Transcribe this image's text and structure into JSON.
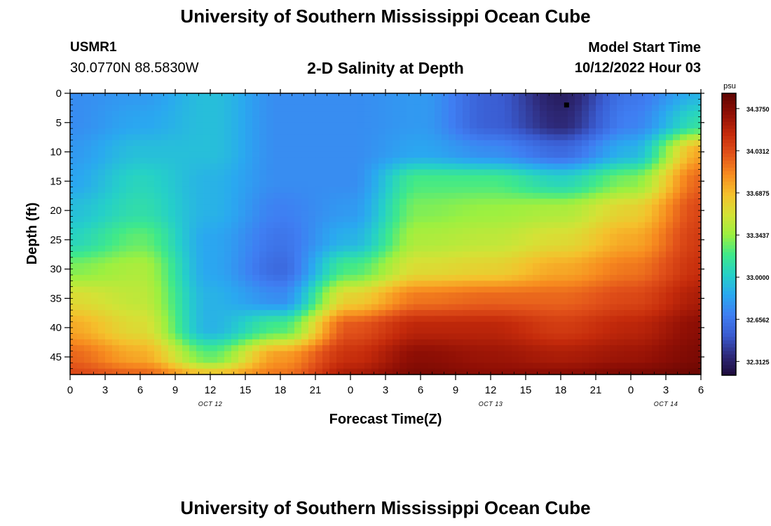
{
  "header": {
    "title": "University of Southern Mississippi Ocean Cube",
    "station_id": "USMR1",
    "coordinates": "30.0770N  88.5830W",
    "subtitle": "2-D Salinity at Depth",
    "start_label": "Model Start Time",
    "start_value": "10/12/2022 Hour 03"
  },
  "footer": {
    "title": "University of Southern Mississippi Ocean Cube"
  },
  "chart_data": {
    "type": "heatmap",
    "title": "2-D Salinity at Depth",
    "xlabel": "Forecast Time(Z)",
    "ylabel": "Depth (ft)",
    "x_ticks": [
      "0",
      "3",
      "6",
      "9",
      "12",
      "15",
      "18",
      "21",
      "0",
      "3",
      "6",
      "9",
      "12",
      "15",
      "18",
      "21",
      "0",
      "3",
      "6"
    ],
    "x_hours": [
      0,
      3,
      6,
      9,
      12,
      15,
      18,
      21,
      24,
      27,
      30,
      33,
      36,
      39,
      42,
      45,
      48,
      51,
      54
    ],
    "xlim": [
      0,
      54
    ],
    "day_labels": [
      {
        "text": "OCT 12",
        "hour": 12
      },
      {
        "text": "OCT 13",
        "hour": 36
      },
      {
        "text": "OCT 14",
        "hour": 51
      }
    ],
    "y_ticks": [
      0,
      5,
      10,
      15,
      20,
      25,
      30,
      35,
      40,
      45
    ],
    "ylim": [
      0,
      48
    ],
    "colorbar": {
      "unit": "psu",
      "min": 32.2,
      "max": 34.5,
      "labels": [
        "34.3750",
        "34.0312",
        "33.6875",
        "33.3437",
        "33.0000",
        "32.6562",
        "32.3125"
      ],
      "label_values": [
        34.375,
        34.0312,
        33.6875,
        33.3437,
        33.0,
        32.6562,
        32.3125
      ],
      "palette": [
        "#1e0b3a",
        "#2e2a7a",
        "#3a5bd0",
        "#3f7ef2",
        "#2aa8f0",
        "#25d0c8",
        "#3fe98a",
        "#9cf040",
        "#d4e236",
        "#f5c02c",
        "#f78b1f",
        "#e2521a",
        "#c42a0b",
        "#900f05",
        "#5e0402"
      ]
    },
    "grid": {
      "hours": [
        0,
        6,
        12,
        18,
        24,
        30,
        36,
        42,
        48,
        54
      ],
      "depths": [
        0,
        5,
        10,
        15,
        20,
        25,
        30,
        35,
        40,
        45,
        48
      ],
      "salinity": [
        [
          32.75,
          32.8,
          32.95,
          32.75,
          32.75,
          32.8,
          32.55,
          32.3,
          32.65,
          32.9
        ],
        [
          32.75,
          32.85,
          32.95,
          32.75,
          32.75,
          32.8,
          32.55,
          32.35,
          32.7,
          33.1
        ],
        [
          32.8,
          32.95,
          32.95,
          32.75,
          32.75,
          32.85,
          32.75,
          32.6,
          32.9,
          33.75
        ],
        [
          32.85,
          33.05,
          32.9,
          32.75,
          32.75,
          33.2,
          33.2,
          33.05,
          33.3,
          33.95
        ],
        [
          32.95,
          33.1,
          32.9,
          32.7,
          32.8,
          33.3,
          33.35,
          33.4,
          33.6,
          34.05
        ],
        [
          33.05,
          33.25,
          32.85,
          32.65,
          32.9,
          33.4,
          33.45,
          33.55,
          33.75,
          34.1
        ],
        [
          33.3,
          33.4,
          32.85,
          32.6,
          33.2,
          33.55,
          33.6,
          33.75,
          33.9,
          34.15
        ],
        [
          33.55,
          33.45,
          32.9,
          32.75,
          33.6,
          33.9,
          33.95,
          33.95,
          34.05,
          34.25
        ],
        [
          33.75,
          33.55,
          32.9,
          33.2,
          34.0,
          34.2,
          34.2,
          34.1,
          34.2,
          34.35
        ],
        [
          33.95,
          33.75,
          33.25,
          33.8,
          34.15,
          34.35,
          34.3,
          34.25,
          34.3,
          34.4
        ],
        [
          34.05,
          33.95,
          33.65,
          33.9,
          34.25,
          34.4,
          34.35,
          34.35,
          34.4,
          34.45
        ]
      ]
    },
    "marker": {
      "hour": 42.5,
      "depth": 2
    }
  }
}
